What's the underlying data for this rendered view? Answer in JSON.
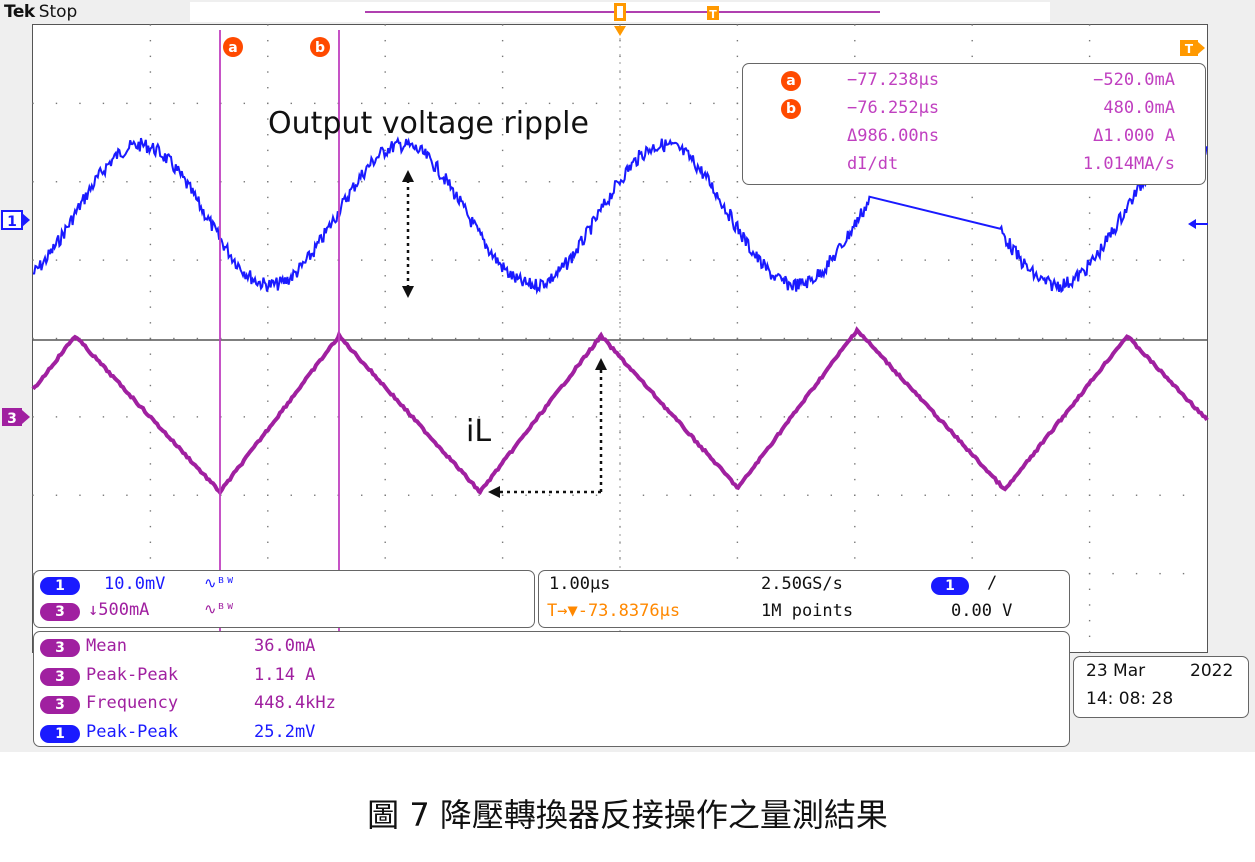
{
  "header": {
    "brand": "Tek",
    "state": "Stop"
  },
  "cursors": {
    "a_label": "a",
    "b_label": "b",
    "trigger_marker": "T"
  },
  "readout": {
    "rows": [
      {
        "marker": "a",
        "time": "−77.238µs",
        "value": "−520.0mA"
      },
      {
        "marker": "b",
        "time": "−76.252µs",
        "value": "480.0mA"
      },
      {
        "marker": "",
        "time": "Δ986.00ns",
        "value": "Δ1.000 A"
      },
      {
        "marker": "",
        "time": "dI/dt",
        "value": "1.014MA/s"
      }
    ]
  },
  "annotations": {
    "ripple": "Output voltage ripple",
    "inductor": "iL"
  },
  "channel_markers": {
    "ch1": "1",
    "ch3": "3"
  },
  "channels": [
    {
      "num": "1",
      "scale": "10.0mV",
      "coupling": "∿ᴮᵂ",
      "color": "#1a1aff"
    },
    {
      "num": "3",
      "scale": "↓500mA",
      "coupling": "∿ᴮᵂ",
      "color": "#a020a0"
    }
  ],
  "timebase": {
    "time_div": "1.00µs",
    "sample_rate": "2.50GS/s",
    "trigger_pos": "T→▼-73.8376µs",
    "record_length": "1M points",
    "trigger_ch": "1",
    "trigger_slope": "∕",
    "trigger_level": "0.00 V"
  },
  "measurements": [
    {
      "ch": "3",
      "name": "Mean",
      "value": "36.0mA",
      "color": "#a020a0"
    },
    {
      "ch": "3",
      "name": "Peak-Peak",
      "value": "1.14 A",
      "color": "#a020a0"
    },
    {
      "ch": "3",
      "name": "Frequency",
      "value": "448.4kHz",
      "color": "#a020a0"
    },
    {
      "ch": "1",
      "name": "Peak-Peak",
      "value": "25.2mV",
      "color": "#1a1aff"
    }
  ],
  "datetime": {
    "date": "23 Mar",
    "year": "2022",
    "time": "14: 08: 28"
  },
  "caption": "圖 7 降壓轉換器反接操作之量測結果",
  "colors": {
    "ch1": "#1a1aff",
    "ch3": "#a020a0",
    "cursor": "#c040c0",
    "orange": "#ff8800",
    "readout_text": "#c040c0"
  }
}
